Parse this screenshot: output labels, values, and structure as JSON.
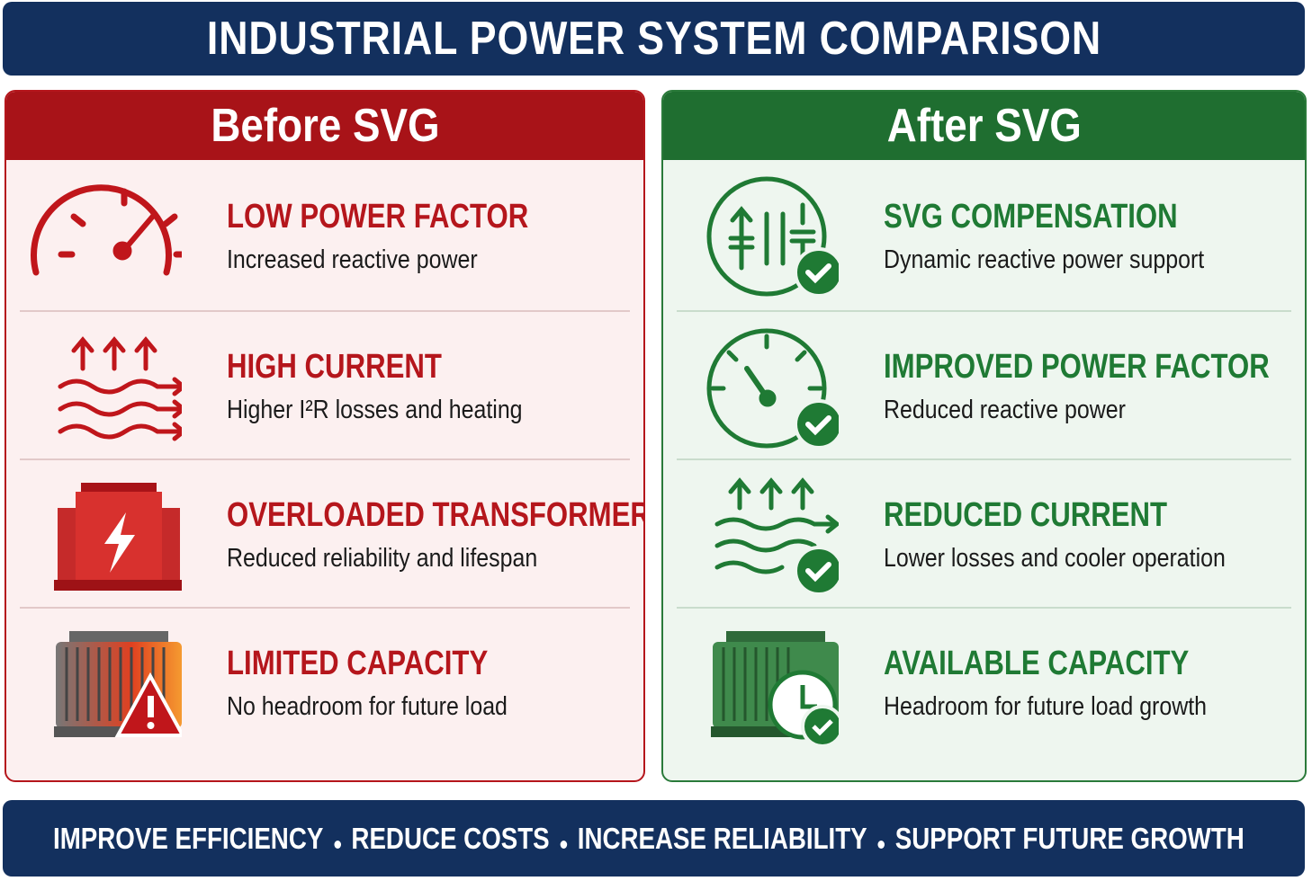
{
  "header": {
    "title": "INDUSTRIAL POWER SYSTEM COMPARISON"
  },
  "panels": [
    {
      "title": "Before SVG",
      "items": [
        {
          "title": "LOW POWER FACTOR",
          "text": "Increased reactive power"
        },
        {
          "title": "HIGH CURRENT",
          "text": "Higher I²R losses and heating"
        },
        {
          "title": "OVERLOADED TRANSFORMER",
          "text": "Reduced reliability and lifespan"
        },
        {
          "title": "LIMITED CAPACITY",
          "text": "No headroom for future load"
        }
      ]
    },
    {
      "title": "After SVG",
      "items": [
        {
          "title": "SVG COMPENSATION",
          "text": "Dynamic reactive power support"
        },
        {
          "title": "IMPROVED POWER FACTOR",
          "text": "Reduced reactive power"
        },
        {
          "title": "REDUCED CURRENT",
          "text": "Lower losses and cooler operation"
        },
        {
          "title": "AVAILABLE CAPACITY",
          "text": "Headroom for future load growth"
        }
      ]
    }
  ],
  "footer": {
    "items": [
      "IMPROVE EFFICIENCY",
      "REDUCE COSTS",
      "INCREASE RELIABILITY",
      "SUPPORT FUTURE GROWTH"
    ]
  }
}
